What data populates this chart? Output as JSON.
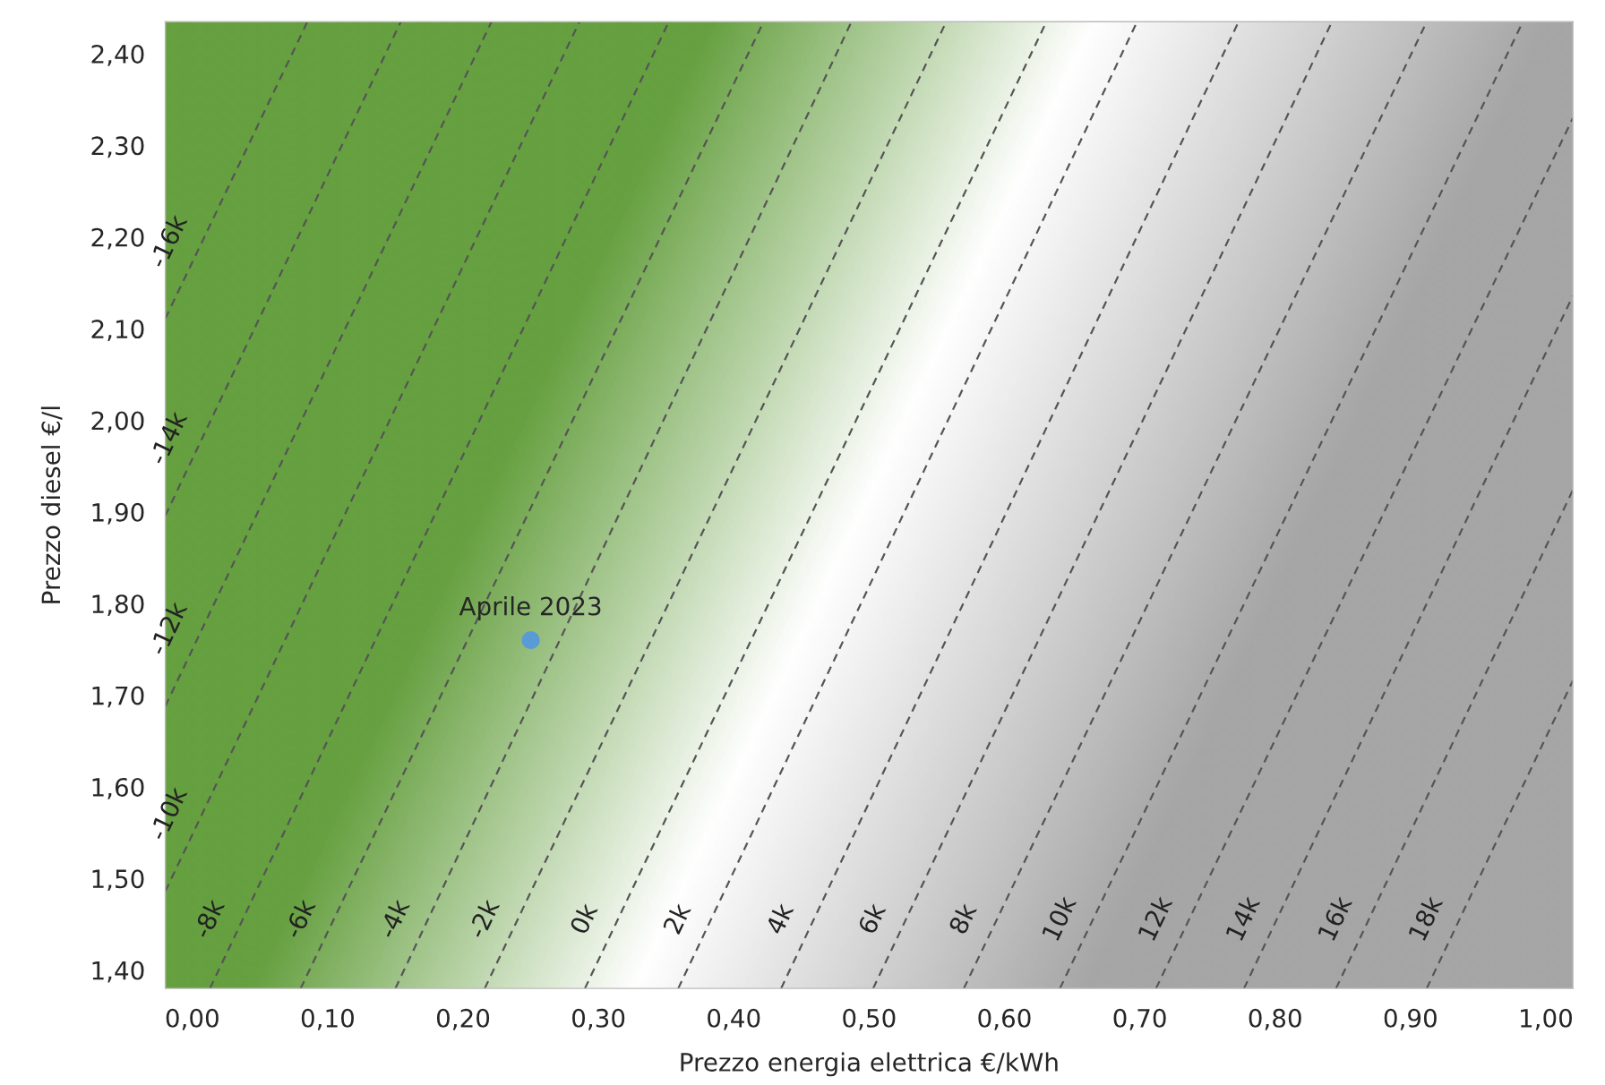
{
  "chart_data": {
    "type": "line",
    "xlabel": "Prezzo energia elettrica €/kWh",
    "ylabel": "Prezzo diesel €/l",
    "xlim": [
      -0.02,
      1.02
    ],
    "ylim": [
      1.38,
      2.435
    ],
    "xticks": [
      {
        "value": 0,
        "label": "0,00"
      },
      {
        "value": 0.1,
        "label": "0,10"
      },
      {
        "value": 0.2,
        "label": "0,20"
      },
      {
        "value": 0.3,
        "label": "0,30"
      },
      {
        "value": 0.4,
        "label": "0,40"
      },
      {
        "value": 0.5,
        "label": "0,50"
      },
      {
        "value": 0.6,
        "label": "0,60"
      },
      {
        "value": 0.7,
        "label": "0,70"
      },
      {
        "value": 0.8,
        "label": "0,80"
      },
      {
        "value": 0.9,
        "label": "0,90"
      },
      {
        "value": 1.0,
        "label": "1,00"
      }
    ],
    "yticks": [
      {
        "value": 1.4,
        "label": "1,40"
      },
      {
        "value": 1.5,
        "label": "1,50"
      },
      {
        "value": 1.6,
        "label": "1,60"
      },
      {
        "value": 1.7,
        "label": "1,70"
      },
      {
        "value": 1.8,
        "label": "1,80"
      },
      {
        "value": 1.9,
        "label": "1,90"
      },
      {
        "value": 2.0,
        "label": "2,00"
      },
      {
        "value": 2.1,
        "label": "2,10"
      },
      {
        "value": 2.2,
        "label": "2,20"
      },
      {
        "value": 2.3,
        "label": "2,30"
      },
      {
        "value": 2.4,
        "label": "2,40"
      }
    ],
    "grid": false,
    "legend": false,
    "line_style": "dashed",
    "marker": "none",
    "series": [
      {
        "name": "-16k",
        "color": "#555555",
        "x": [
          -0.02,
          0.085
        ],
        "values": [
          2.111,
          2.435
        ]
      },
      {
        "name": "-14k",
        "color": "#555555",
        "x": [
          -0.02,
          0.154
        ],
        "values": [
          1.896,
          2.435
        ]
      },
      {
        "name": "-12k",
        "color": "#555555",
        "x": [
          -0.02,
          0.221
        ],
        "values": [
          1.688,
          2.435
        ]
      },
      {
        "name": "-10k",
        "color": "#555555",
        "x": [
          -0.02,
          0.286
        ],
        "values": [
          1.486,
          2.435
        ]
      },
      {
        "name": "-8k",
        "color": "#555555",
        "x": [
          0.013,
          0.352
        ],
        "values": [
          1.38,
          2.435
        ]
      },
      {
        "name": "-6k",
        "color": "#555555",
        "x": [
          0.08,
          0.422
        ],
        "values": [
          1.38,
          2.435
        ]
      },
      {
        "name": "-4k",
        "color": "#555555",
        "x": [
          0.15,
          0.487
        ],
        "values": [
          1.38,
          2.435
        ]
      },
      {
        "name": "-2k",
        "color": "#555555",
        "x": [
          0.216,
          0.557
        ],
        "values": [
          1.38,
          2.435
        ]
      },
      {
        "name": "0k",
        "color": "#555555",
        "x": [
          0.29,
          0.631
        ],
        "values": [
          1.38,
          2.435
        ]
      },
      {
        "name": "2k",
        "color": "#555555",
        "x": [
          0.359,
          0.698
        ],
        "values": [
          1.38,
          2.435
        ]
      },
      {
        "name": "4k",
        "color": "#555555",
        "x": [
          0.435,
          0.773
        ],
        "values": [
          1.38,
          2.435
        ]
      },
      {
        "name": "6k",
        "color": "#555555",
        "x": [
          0.503,
          0.842
        ],
        "values": [
          1.38,
          2.435
        ]
      },
      {
        "name": "8k",
        "color": "#555555",
        "x": [
          0.57,
          0.912
        ],
        "values": [
          1.38,
          2.435
        ]
      },
      {
        "name": "10k",
        "color": "#555555",
        "x": [
          0.641,
          0.983
        ],
        "values": [
          1.38,
          2.435
        ]
      },
      {
        "name": "12k",
        "color": "#555555",
        "x": [
          0.712,
          1.02
        ],
        "values": [
          1.38,
          2.33
        ]
      },
      {
        "name": "14k",
        "color": "#555555",
        "x": [
          0.777,
          1.02
        ],
        "values": [
          1.38,
          2.136
        ]
      },
      {
        "name": "16k",
        "color": "#555555",
        "x": [
          0.845,
          1.02
        ],
        "values": [
          1.38,
          1.924
        ]
      },
      {
        "name": "18k",
        "color": "#555555",
        "x": [
          0.912,
          1.02
        ],
        "values": [
          1.38,
          1.716
        ]
      },
      {
        "type": "scatter",
        "marker": "circle",
        "color": "#5b9bd5",
        "x": [
          0.25
        ],
        "values": [
          1.76
        ]
      }
    ],
    "annotations": [
      {
        "text": "Aprile 2023",
        "x": 0.25,
        "y": 1.76
      }
    ]
  }
}
